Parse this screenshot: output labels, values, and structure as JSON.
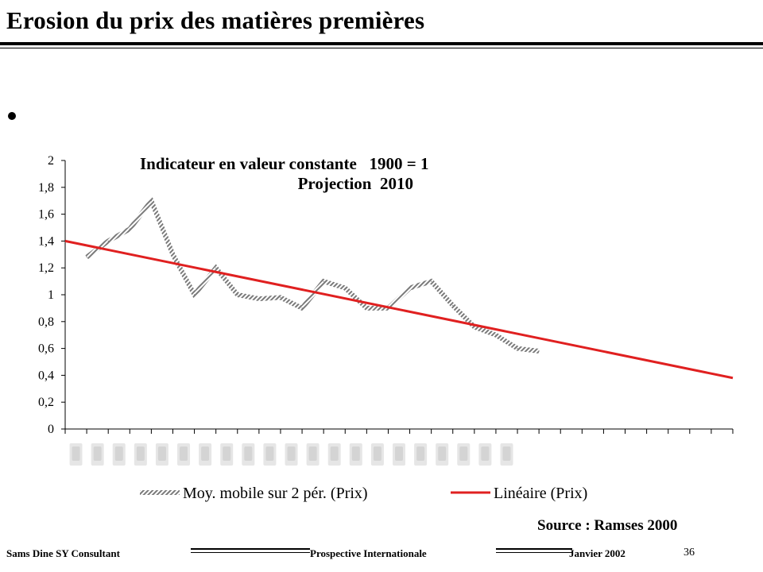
{
  "slide": {
    "title": "Erosion du prix des matières premières",
    "source": "Source : Ramses 2000"
  },
  "footer": {
    "left": "Sams Dine SY Consultant",
    "middle": "Prospective Internationale",
    "right": "Janvier 2002",
    "page": "36"
  },
  "chart_data": {
    "type": "line",
    "title_line1": "Indicateur en valeur constante   1900 = 1",
    "title_line2": "Projection  2010",
    "ylim": [
      0,
      2
    ],
    "yticks": [
      "0",
      "0,2",
      "0,4",
      "0,6",
      "0,8",
      "1",
      "1,2",
      "1,4",
      "1,6",
      "1,8",
      "2"
    ],
    "x_count": 31,
    "legend_position": "bottom",
    "grid": false,
    "series": [
      {
        "name": "Moy. mobile sur 2 pér. (Prix)",
        "color": "#8c8c8c",
        "style": "hatched",
        "x": [
          1,
          2,
          3,
          4,
          5,
          6,
          7,
          8,
          9,
          10,
          11,
          12,
          13,
          14,
          15,
          16,
          17,
          18,
          19,
          20,
          21,
          22
        ],
        "values": [
          1.28,
          1.4,
          1.49,
          1.7,
          1.3,
          1.0,
          1.2,
          1.0,
          0.97,
          0.98,
          0.9,
          1.1,
          1.05,
          0.9,
          0.9,
          1.05,
          1.1,
          0.92,
          0.76,
          0.7,
          0.6,
          0.58
        ]
      },
      {
        "name": "Linéaire (Prix)",
        "color": "#e02020",
        "style": "solid",
        "x": [
          0,
          31
        ],
        "values": [
          1.4,
          0.38
        ]
      }
    ]
  }
}
